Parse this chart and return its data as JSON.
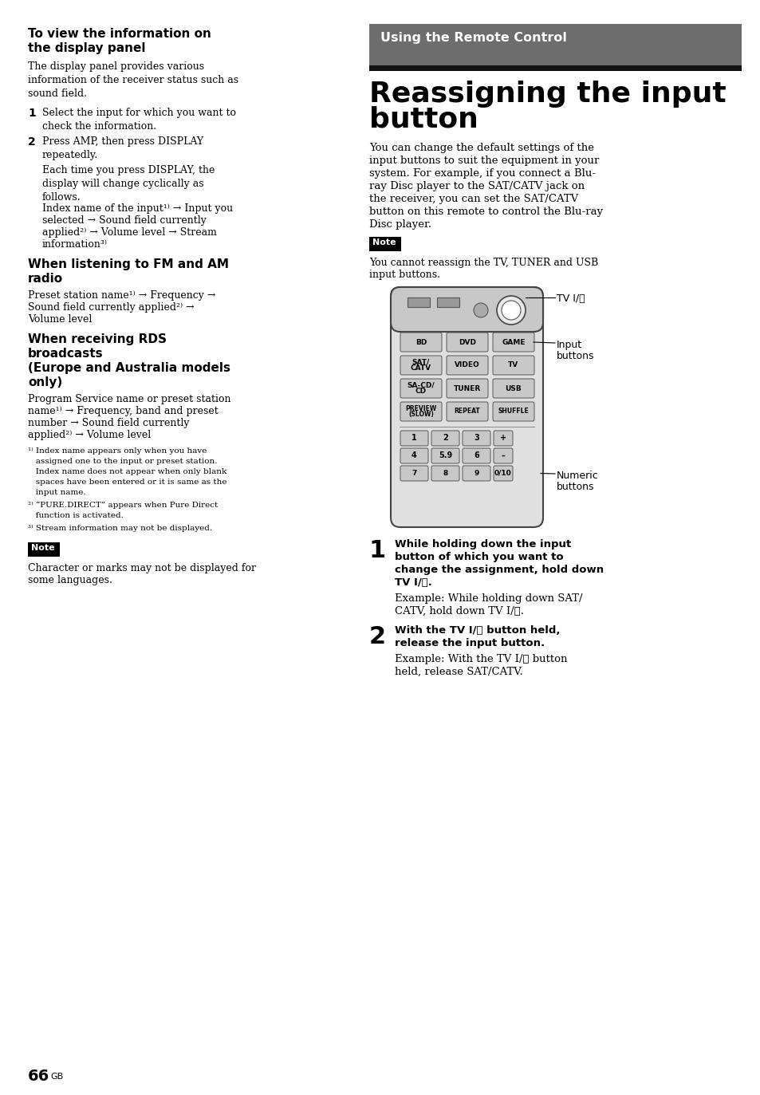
{
  "bg_color": "#ffffff",
  "header_bg": "#6b6b6b",
  "header_text": "Using the Remote Control",
  "header_text_color": "#ffffff",
  "black_bar_color": "#111111",
  "title_main_line1": "Reassigning the input",
  "title_main_line2": "button",
  "left_heading1_line1": "To view the information on",
  "left_heading1_line2": "the display panel",
  "left_body1": "The display panel provides various\ninformation of the receiver status such as\nsound field.",
  "left_step1_num": "1",
  "left_step1_text": "Select the input for which you want to\ncheck the information.",
  "left_step2_num": "2",
  "left_step2_text": "Press AMP, then press DISPLAY\nrepeatedly.",
  "left_step2_body": "Each time you press DISPLAY, the\ndisplay will change cyclically as\nfollows.",
  "left_step2_flow_line1": "Index name of the input¹⁾ → Input you",
  "left_step2_flow_line2": "selected → Sound field currently",
  "left_step2_flow_line3": "applied²⁾ → Volume level → Stream",
  "left_step2_flow_line4": "information³⁾",
  "left_heading2_line1": "When listening to FM and AM",
  "left_heading2_line2": "radio",
  "left_body2_line1": "Preset station name¹⁾ → Frequency →",
  "left_body2_line2": "Sound field currently applied²⁾ →",
  "left_body2_line3": "Volume level",
  "left_heading3_line1": "When receiving RDS",
  "left_heading3_line2": "broadcasts",
  "left_heading3_line3": "(Europe and Australia models",
  "left_heading3_line4": "only)",
  "left_body3_line1": "Program Service name or preset station",
  "left_body3_line2": "name¹⁾ → Frequency, band and preset",
  "left_body3_line3": "number → Sound field currently",
  "left_body3_line4": "applied²⁾ → Volume level",
  "footnote1_line1": "¹⁾ Index name appears only when you have",
  "footnote1_line2": "   assigned one to the input or preset station.",
  "footnote1_line3": "   Index name does not appear when only blank",
  "footnote1_line4": "   spaces have been entered or it is same as the",
  "footnote1_line5": "   input name.",
  "footnote2_line1": "²⁾ “PURE.DIRECT” appears when Pure Direct",
  "footnote2_line2": "   function is activated.",
  "footnote3": "³⁾ Stream information may not be displayed.",
  "left_note_label": "Note",
  "left_note_text_line1": "Character or marks may not be displayed for",
  "left_note_text_line2": "some languages.",
  "right_body_line1": "You can change the default settings of the",
  "right_body_line2": "input buttons to suit the equipment in your",
  "right_body_line3": "system. For example, if you connect a Blu-",
  "right_body_line4": "ray Disc player to the SAT/CATV jack on",
  "right_body_line5": "the receiver, you can set the SAT/CATV",
  "right_body_line6": "button on this remote to control the Blu-ray",
  "right_body_line7": "Disc player.",
  "right_note_label": "Note",
  "right_note_text_line1": "You cannot reassign the TV, TUNER and USB",
  "right_note_text_line2": "input buttons.",
  "tv_label": "TV I/⏻",
  "input_label_line1": "Input",
  "input_label_line2": "buttons",
  "numeric_label_line1": "Numeric",
  "numeric_label_line2": "buttons",
  "right_step1_num": "1",
  "right_step1_bold_line1": "While holding down the input",
  "right_step1_bold_line2": "button of which you want to",
  "right_step1_bold_line3": "change the assignment, hold down",
  "right_step1_bold_line4": "TV I/⏻.",
  "right_step1_body_line1": "Example: While holding down SAT/",
  "right_step1_body_line2": "CATV, hold down TV I/⏻.",
  "right_step2_num": "2",
  "right_step2_bold_line1": "With the TV I/⏻ button held,",
  "right_step2_bold_line2": "release the input button.",
  "right_step2_body_line1": "Example: With the TV I/⏻ button",
  "right_step2_body_line2": "held, release SAT/CATV.",
  "page_num": "66",
  "page_suffix": "GB"
}
